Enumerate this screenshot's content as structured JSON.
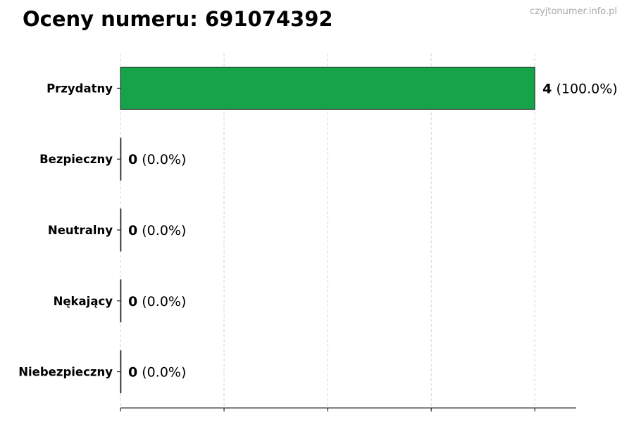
{
  "chart_data": {
    "type": "bar",
    "orientation": "horizontal",
    "title": "Oceny numeru: 691074392",
    "watermark": "czyjtonumer.info.pl",
    "categories": [
      "Przydatny",
      "Bezpieczny",
      "Neutralny",
      "Nękający",
      "Niebezpieczny"
    ],
    "values": [
      4,
      0,
      0,
      0,
      0
    ],
    "percent_labels": [
      "(100.0%)",
      "(0.0%)",
      "(0.0%)",
      "(0.0%)",
      "(0.0%)"
    ],
    "xlim": [
      0,
      4.4
    ],
    "xticks": [
      0,
      1,
      2,
      3,
      4
    ],
    "xtick_labels_shown": false,
    "grid": "x, dashed",
    "bar_color": "#17a34a",
    "xlabel": "",
    "ylabel": ""
  }
}
